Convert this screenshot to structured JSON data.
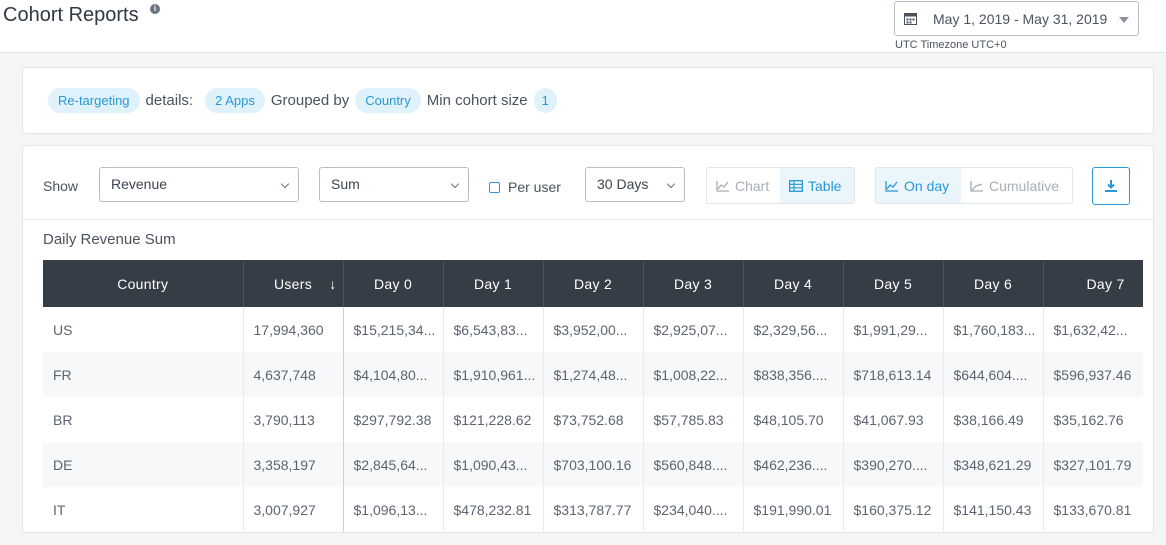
{
  "header": {
    "title": "Cohort Reports",
    "info_icon": "info-icon",
    "date_range": "May 1, 2019 - May 31, 2019",
    "timezone": "UTC Timezone UTC+0"
  },
  "summary": {
    "type_pill": "Re-targeting",
    "details_label": "details:",
    "apps_pill": "2 Apps",
    "grouped_label": "Grouped by",
    "group_pill": "Country",
    "min_label": "Min cohort size",
    "min_pill": "1"
  },
  "controls": {
    "show_label": "Show",
    "metric": "Revenue",
    "aggregation": "Sum",
    "per_user_label": "Per user",
    "period": "30 Days",
    "chart_label": "Chart",
    "table_label": "Table",
    "on_day_label": "On day",
    "cumulative_label": "Cumulative"
  },
  "table": {
    "title": "Daily Revenue Sum",
    "columns": [
      "Country",
      "Users",
      "Day 0",
      "Day 1",
      "Day 2",
      "Day 3",
      "Day 4",
      "Day 5",
      "Day 6",
      "Day 7"
    ],
    "rows": [
      [
        "US",
        "17,994,360",
        "$15,215,34...",
        "$6,543,83...",
        "$3,952,00...",
        "$2,925,07...",
        "$2,329,56...",
        "$1,991,29...",
        "$1,760,183...",
        "$1,632,42..."
      ],
      [
        "FR",
        "4,637,748",
        "$4,104,80...",
        "$1,910,961...",
        "$1,274,48...",
        "$1,008,22...",
        "$838,356....",
        "$718,613.14",
        "$644,604....",
        "$596,937.46"
      ],
      [
        "BR",
        "3,790,113",
        "$297,792.38",
        "$121,228.62",
        "$73,752.68",
        "$57,785.83",
        "$48,105.70",
        "$41,067.93",
        "$38,166.49",
        "$35,162.76"
      ],
      [
        "DE",
        "3,358,197",
        "$2,845,64...",
        "$1,090,43...",
        "$703,100.16",
        "$560,848....",
        "$462,236....",
        "$390,270....",
        "$348,621.29",
        "$327,101.79"
      ],
      [
        "IT",
        "3,007,927",
        "$1,096,13...",
        "$478,232.81",
        "$313,787.77",
        "$234,040....",
        "$191,990.01",
        "$160,375.12",
        "$141,150.43",
        "$133,670.81"
      ]
    ]
  },
  "colors": {
    "accent": "#2a98d6",
    "header_bg": "#353d47",
    "pill_bg": "#dff1fb"
  }
}
